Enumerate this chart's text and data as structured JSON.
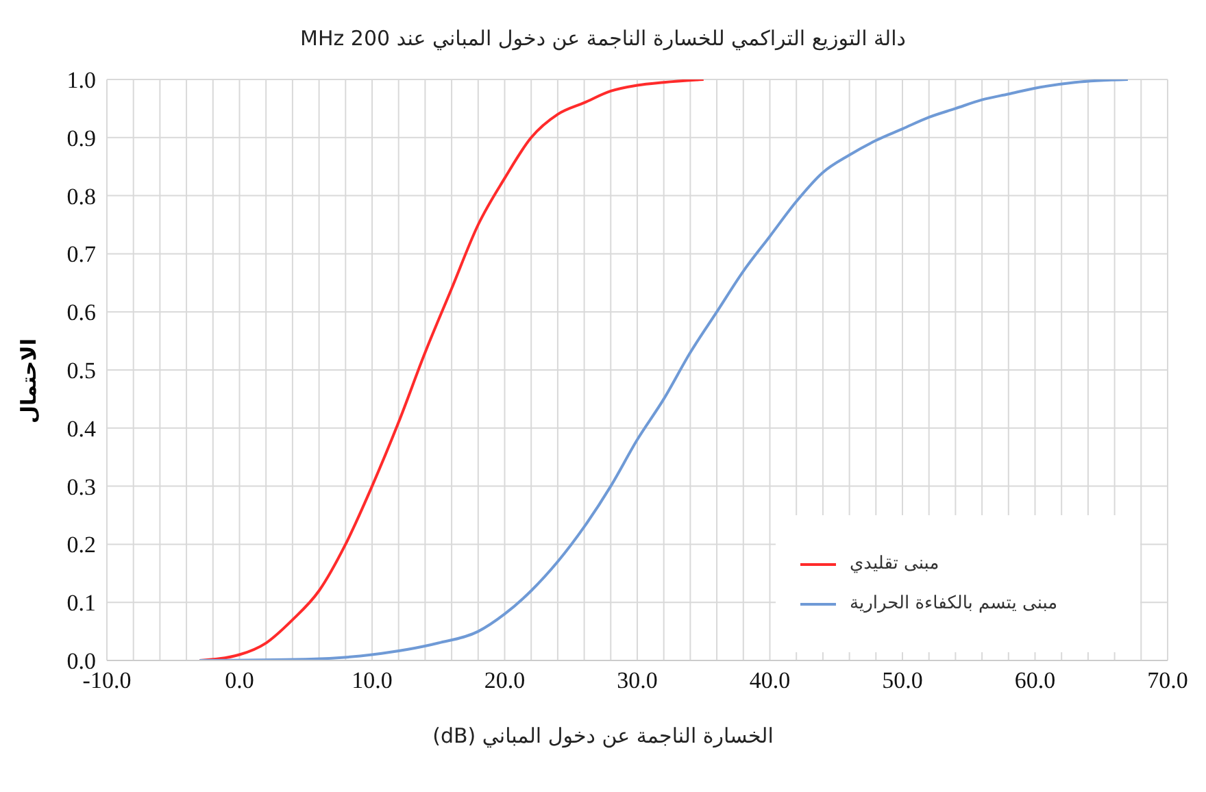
{
  "chart_data": {
    "type": "line",
    "title": "دالة التوزيع التراكمي للخسارة الناجمة عن دخول المباني عند 200 MHz",
    "xlabel": "الخسارة الناجمة عن دخول المباني (dB)",
    "ylabel": "الاحتمال",
    "xlim": [
      -10,
      70
    ],
    "xticks": [
      {
        "value": -10,
        "label": "-10.0"
      },
      {
        "value": -8,
        "label": null
      },
      {
        "value": -6,
        "label": null
      },
      {
        "value": -4,
        "label": null
      },
      {
        "value": -2,
        "label": null
      },
      {
        "value": 0,
        "label": "0.0"
      },
      {
        "value": 2,
        "label": null
      },
      {
        "value": 4,
        "label": null
      },
      {
        "value": 6,
        "label": null
      },
      {
        "value": 8,
        "label": null
      },
      {
        "value": 10,
        "label": "10.0"
      },
      {
        "value": 12,
        "label": null
      },
      {
        "value": 14,
        "label": null
      },
      {
        "value": 16,
        "label": null
      },
      {
        "value": 18,
        "label": null
      },
      {
        "value": 20,
        "label": "20.0"
      },
      {
        "value": 22,
        "label": null
      },
      {
        "value": 24,
        "label": null
      },
      {
        "value": 26,
        "label": null
      },
      {
        "value": 28,
        "label": null
      },
      {
        "value": 30,
        "label": "30.0"
      },
      {
        "value": 32,
        "label": null
      },
      {
        "value": 34,
        "label": null
      },
      {
        "value": 36,
        "label": null
      },
      {
        "value": 38,
        "label": null
      },
      {
        "value": 40,
        "label": "40.0"
      },
      {
        "value": 42,
        "label": null
      },
      {
        "value": 44,
        "label": null
      },
      {
        "value": 46,
        "label": null
      },
      {
        "value": 48,
        "label": null
      },
      {
        "value": 50,
        "label": "50.0"
      },
      {
        "value": 52,
        "label": null
      },
      {
        "value": 54,
        "label": null
      },
      {
        "value": 56,
        "label": null
      },
      {
        "value": 58,
        "label": null
      },
      {
        "value": 60,
        "label": "60.0"
      },
      {
        "value": 62,
        "label": null
      },
      {
        "value": 64,
        "label": null
      },
      {
        "value": 66,
        "label": null
      },
      {
        "value": 68,
        "label": null
      },
      {
        "value": 70,
        "label": "70.0"
      }
    ],
    "ylim": [
      0,
      1
    ],
    "yticks": [
      {
        "value": 0,
        "label": "0.0"
      },
      {
        "value": 0.1,
        "label": "0.1"
      },
      {
        "value": 0.2,
        "label": "0.2"
      },
      {
        "value": 0.3,
        "label": "0.3"
      },
      {
        "value": 0.4,
        "label": "0.4"
      },
      {
        "value": 0.5,
        "label": "0.5"
      },
      {
        "value": 0.6,
        "label": "0.6"
      },
      {
        "value": 0.7,
        "label": "0.7"
      },
      {
        "value": 0.8,
        "label": "0.8"
      },
      {
        "value": 0.9,
        "label": "0.9"
      },
      {
        "value": 1,
        "label": "1.0"
      }
    ],
    "grid": true,
    "legend": "bottom right",
    "marker": "none",
    "line_style": "solid",
    "series": [
      {
        "name": "مبنى تقليدي",
        "color": "#ff2b2b",
        "x": [
          -3,
          0,
          2,
          4,
          6,
          8,
          10,
          12,
          14,
          16,
          18,
          20,
          22,
          24,
          26,
          28,
          30,
          32,
          35
        ],
        "values": [
          0,
          0.01,
          0.03,
          0.07,
          0.12,
          0.2,
          0.3,
          0.41,
          0.53,
          0.64,
          0.75,
          0.83,
          0.9,
          0.94,
          0.96,
          0.98,
          0.99,
          0.995,
          1
        ]
      },
      {
        "name": "مبنى يتسم بالكفاءة الحرارية",
        "color": "#6f9ad6",
        "x": [
          -3,
          5,
          10,
          15,
          18,
          20,
          22,
          24,
          26,
          28,
          30,
          32,
          34,
          36,
          38,
          40,
          42,
          44,
          46,
          48,
          50,
          52,
          54,
          56,
          58,
          60,
          63,
          67
        ],
        "values": [
          0,
          0.002,
          0.01,
          0.03,
          0.05,
          0.08,
          0.12,
          0.17,
          0.23,
          0.3,
          0.38,
          0.45,
          0.53,
          0.6,
          0.67,
          0.73,
          0.79,
          0.84,
          0.87,
          0.895,
          0.915,
          0.935,
          0.95,
          0.965,
          0.975,
          0.985,
          0.995,
          1
        ]
      }
    ]
  }
}
